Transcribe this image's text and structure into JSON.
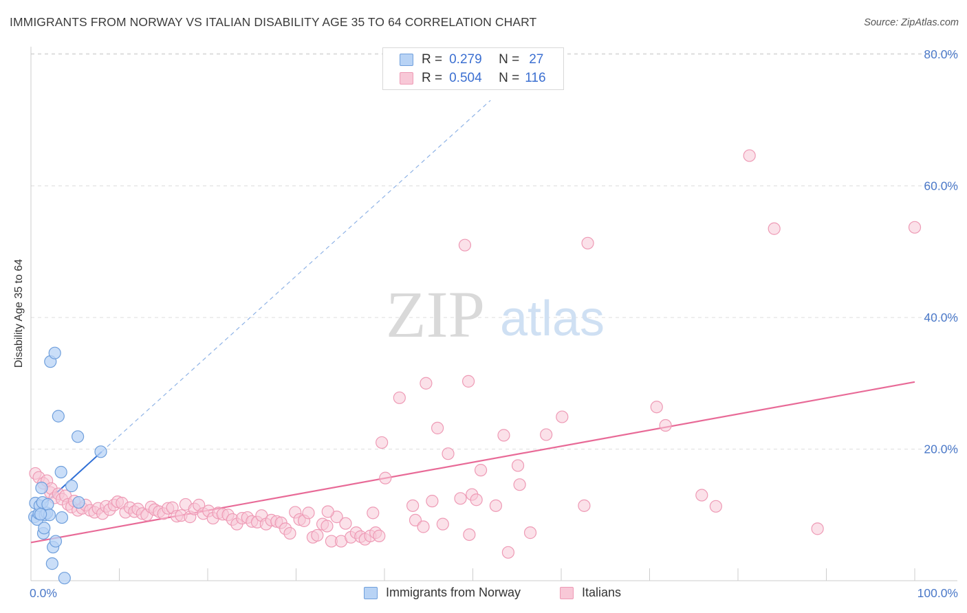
{
  "title": "IMMIGRANTS FROM NORWAY VS ITALIAN DISABILITY AGE 35 TO 64 CORRELATION CHART",
  "source": "Source: ZipAtlas.com",
  "watermark": {
    "zip": "ZIP",
    "atlas": "atlas"
  },
  "legend": {
    "r_label": "R =",
    "n_label": "N =",
    "rows": [
      {
        "r": "0.279",
        "n": "27"
      },
      {
        "r": "0.504",
        "n": "116"
      }
    ]
  },
  "colors": {
    "norway_fill": "#b8d3f5",
    "norway_stroke": "#6f9fdc",
    "norway_line": "#2f6fd6",
    "italians_fill": "#f8c8d7",
    "italians_stroke": "#ee9ab5",
    "italians_line": "#e86a97",
    "grid": "#dddddd",
    "axis_text": "#4a78c8"
  },
  "chart_data": {
    "type": "scatter",
    "title": "IMMIGRANTS FROM NORWAY VS ITALIAN DISABILITY AGE 35 TO 64 CORRELATION CHART",
    "xlabel": "",
    "ylabel": "Disability Age 35 to 64",
    "xlim": [
      0,
      100
    ],
    "ylim": [
      0,
      82
    ],
    "x_tick_labels": {
      "left": "0.0%",
      "right": "100.0%"
    },
    "y_ticks": [
      {
        "value": 20,
        "label": "20.0%"
      },
      {
        "value": 40,
        "label": "40.0%"
      },
      {
        "value": 60,
        "label": "60.0%"
      },
      {
        "value": 80,
        "label": "80.0%"
      }
    ],
    "series": [
      {
        "name": "Immigrants from Norway",
        "R": 0.279,
        "N": 27,
        "trend": {
          "x": [
            0,
            8
          ],
          "y": [
            9.8,
            19.6
          ],
          "dashed_to": [
            52,
            73
          ]
        },
        "points": [
          [
            0.4,
            9.7
          ],
          [
            0.5,
            11.8
          ],
          [
            0.7,
            9.3
          ],
          [
            0.9,
            10.2
          ],
          [
            1.0,
            11.4
          ],
          [
            1.2,
            14.1
          ],
          [
            1.3,
            11.9
          ],
          [
            1.4,
            7.2
          ],
          [
            1.6,
            10.0
          ],
          [
            1.5,
            8.0
          ],
          [
            1.8,
            10.3
          ],
          [
            1.9,
            11.6
          ],
          [
            2.1,
            10.0
          ],
          [
            2.2,
            33.3
          ],
          [
            2.4,
            2.6
          ],
          [
            2.5,
            5.1
          ],
          [
            2.7,
            34.6
          ],
          [
            2.8,
            6.0
          ],
          [
            3.1,
            25.0
          ],
          [
            3.4,
            16.5
          ],
          [
            3.5,
            9.6
          ],
          [
            3.8,
            0.4
          ],
          [
            4.6,
            14.4
          ],
          [
            5.4,
            11.9
          ],
          [
            5.3,
            21.9
          ],
          [
            7.9,
            19.6
          ],
          [
            1.1,
            10.1
          ]
        ]
      },
      {
        "name": "Italians",
        "R": 0.504,
        "N": 116,
        "trend": {
          "x": [
            0,
            100
          ],
          "y": [
            5.8,
            30.2
          ]
        },
        "points": [
          [
            0.5,
            16.3
          ],
          [
            0.9,
            15.7
          ],
          [
            1.4,
            14.8
          ],
          [
            1.8,
            15.2
          ],
          [
            2.2,
            13.4
          ],
          [
            2.3,
            14.0
          ],
          [
            2.7,
            12.6
          ],
          [
            3.1,
            13.2
          ],
          [
            3.5,
            12.4
          ],
          [
            3.9,
            12.9
          ],
          [
            4.2,
            11.6
          ],
          [
            4.6,
            11.2
          ],
          [
            4.9,
            12.1
          ],
          [
            5.3,
            10.7
          ],
          [
            5.8,
            11.0
          ],
          [
            6.2,
            11.5
          ],
          [
            6.7,
            10.7
          ],
          [
            7.2,
            10.4
          ],
          [
            7.6,
            11.0
          ],
          [
            8.1,
            10.2
          ],
          [
            8.5,
            11.3
          ],
          [
            8.9,
            10.8
          ],
          [
            9.4,
            11.5
          ],
          [
            9.8,
            12.0
          ],
          [
            10.3,
            11.8
          ],
          [
            10.7,
            10.4
          ],
          [
            11.2,
            11.1
          ],
          [
            11.7,
            10.5
          ],
          [
            12.1,
            10.9
          ],
          [
            12.6,
            10.2
          ],
          [
            13.1,
            10.0
          ],
          [
            13.6,
            11.2
          ],
          [
            14.0,
            10.8
          ],
          [
            14.5,
            10.5
          ],
          [
            15.0,
            10.2
          ],
          [
            15.5,
            11.0
          ],
          [
            16.0,
            11.1
          ],
          [
            16.5,
            9.8
          ],
          [
            17.0,
            9.9
          ],
          [
            17.5,
            11.6
          ],
          [
            18.0,
            9.7
          ],
          [
            18.5,
            10.9
          ],
          [
            19.0,
            11.5
          ],
          [
            19.5,
            10.2
          ],
          [
            20.1,
            10.6
          ],
          [
            20.6,
            9.5
          ],
          [
            21.2,
            10.3
          ],
          [
            21.7,
            10.1
          ],
          [
            22.3,
            10.0
          ],
          [
            22.8,
            9.3
          ],
          [
            23.3,
            8.6
          ],
          [
            23.9,
            9.5
          ],
          [
            24.5,
            9.6
          ],
          [
            25.0,
            9.0
          ],
          [
            25.6,
            8.9
          ],
          [
            26.1,
            9.9
          ],
          [
            26.6,
            8.6
          ],
          [
            27.2,
            9.2
          ],
          [
            27.8,
            9.0
          ],
          [
            28.3,
            8.8
          ],
          [
            28.8,
            7.9
          ],
          [
            29.3,
            7.2
          ],
          [
            29.9,
            10.4
          ],
          [
            30.4,
            9.3
          ],
          [
            30.9,
            9.1
          ],
          [
            31.4,
            10.3
          ],
          [
            31.9,
            6.6
          ],
          [
            32.4,
            6.9
          ],
          [
            33.0,
            8.6
          ],
          [
            33.5,
            8.3
          ],
          [
            34.0,
            6.0
          ],
          [
            34.6,
            9.7
          ],
          [
            35.1,
            6.0
          ],
          [
            35.6,
            8.7
          ],
          [
            36.2,
            6.6
          ],
          [
            36.8,
            7.3
          ],
          [
            37.3,
            6.7
          ],
          [
            37.8,
            6.3
          ],
          [
            38.4,
            6.8
          ],
          [
            39.0,
            7.3
          ],
          [
            39.4,
            6.8
          ],
          [
            38.7,
            10.3
          ],
          [
            40.1,
            15.6
          ],
          [
            39.7,
            21.0
          ],
          [
            41.7,
            27.8
          ],
          [
            43.2,
            11.4
          ],
          [
            43.5,
            9.2
          ],
          [
            44.4,
            8.2
          ],
          [
            44.7,
            30.0
          ],
          [
            45.4,
            12.1
          ],
          [
            46.0,
            23.2
          ],
          [
            46.6,
            8.6
          ],
          [
            47.2,
            19.3
          ],
          [
            48.6,
            12.5
          ],
          [
            49.6,
            7.0
          ],
          [
            49.9,
            13.1
          ],
          [
            50.4,
            12.3
          ],
          [
            50.9,
            16.8
          ],
          [
            52.6,
            11.4
          ],
          [
            53.5,
            22.1
          ],
          [
            54.0,
            4.3
          ],
          [
            55.1,
            17.5
          ],
          [
            55.3,
            14.6
          ],
          [
            56.5,
            7.3
          ],
          [
            58.3,
            22.2
          ],
          [
            60.1,
            24.9
          ],
          [
            62.6,
            11.4
          ],
          [
            63.0,
            51.3
          ],
          [
            70.8,
            26.4
          ],
          [
            71.8,
            23.6
          ],
          [
            75.9,
            13.0
          ],
          [
            77.5,
            11.3
          ],
          [
            81.3,
            64.6
          ],
          [
            84.1,
            53.5
          ],
          [
            89.0,
            7.9
          ],
          [
            100.0,
            53.7
          ]
        ]
      }
    ],
    "extra_italian_points_outliers": [
      [
        49.1,
        51.0
      ],
      [
        49.5,
        30.3
      ],
      [
        33.6,
        10.5
      ]
    ],
    "legend": "top-center"
  },
  "bottom_legend": [
    "Immigrants from Norway",
    "Italians"
  ]
}
